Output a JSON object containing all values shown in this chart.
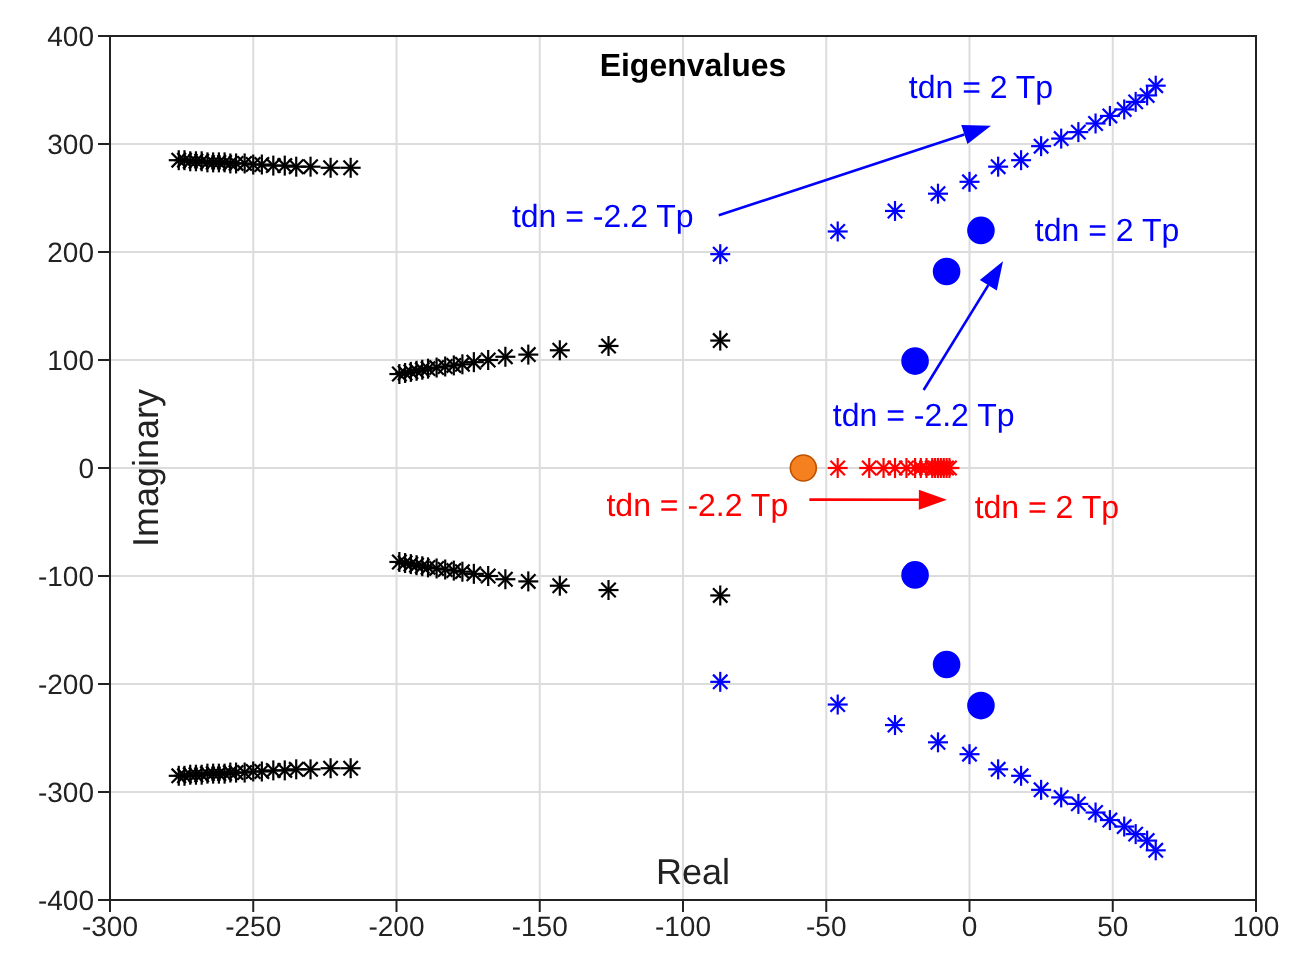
{
  "chart_data": {
    "type": "scatter",
    "title": "Eigenvalues",
    "xlabel": "Real",
    "ylabel": "Imaginary",
    "xlim": [
      -300,
      100
    ],
    "xticks": [
      -300,
      -250,
      -200,
      -150,
      -100,
      -50,
      0,
      50,
      100
    ],
    "ylim": [
      -400,
      400
    ],
    "yticks": [
      -400,
      -300,
      -200,
      -100,
      0,
      100,
      200,
      300,
      400
    ],
    "grid": true,
    "legend": false,
    "series": [
      {
        "color": "#000000",
        "marker": "cross",
        "x": [
          -276,
          -274,
          -272,
          -270,
          -268,
          -266,
          -264,
          -262,
          -260,
          -258,
          -256,
          -253,
          -250,
          -247,
          -243,
          -239,
          -235,
          -230,
          -223,
          -216,
          -276,
          -274,
          -272,
          -270,
          -268,
          -266,
          -264,
          -262,
          -260,
          -258,
          -256,
          -253,
          -250,
          -247,
          -243,
          -239,
          -235,
          -230,
          -223,
          -216,
          -199,
          -197,
          -195,
          -193,
          -191,
          -189,
          -186,
          -183,
          -180,
          -177,
          -173,
          -168,
          -162,
          -154,
          -143,
          -126,
          -87,
          -199,
          -197,
          -195,
          -193,
          -191,
          -189,
          -186,
          -183,
          -180,
          -177,
          -173,
          -168,
          -162,
          -154,
          -143,
          -126,
          -87
        ],
        "values": [
          285,
          285,
          284,
          284,
          284,
          283,
          283,
          283,
          283,
          282,
          282,
          282,
          281,
          281,
          280,
          280,
          279,
          279,
          278,
          278,
          -285,
          -285,
          -284,
          -284,
          -284,
          -283,
          -283,
          -283,
          -283,
          -282,
          -282,
          -282,
          -281,
          -281,
          -280,
          -280,
          -279,
          -279,
          -278,
          -278,
          87,
          88,
          89,
          90,
          91,
          92,
          93,
          94,
          95,
          96,
          98,
          100,
          103,
          105,
          109,
          113,
          118,
          -87,
          -88,
          -89,
          -90,
          -91,
          -92,
          -93,
          -94,
          -95,
          -96,
          -98,
          -100,
          -103,
          -105,
          -109,
          -113,
          -118
        ]
      },
      {
        "color": "#0000ff",
        "marker": "cross",
        "x": [
          -87,
          -46,
          -26,
          -11,
          0,
          10,
          18,
          25,
          32,
          38,
          44,
          49,
          54,
          58,
          62,
          65,
          -87,
          -46,
          -26,
          -11,
          0,
          10,
          18,
          25,
          32,
          38,
          44,
          49,
          54,
          58,
          62,
          65
        ],
        "values": [
          198,
          219,
          238,
          254,
          265,
          279,
          285,
          298,
          305,
          311,
          319,
          326,
          332,
          339,
          345,
          354,
          -198,
          -219,
          -238,
          -254,
          -265,
          -279,
          -285,
          -298,
          -305,
          -311,
          -319,
          -326,
          -332,
          -339,
          -345,
          -354
        ]
      },
      {
        "color": "#0000ff",
        "marker": "circle",
        "x": [
          -19,
          -8,
          4,
          -19,
          -8,
          4
        ],
        "values": [
          99,
          182,
          220,
          -99,
          -182,
          -220
        ]
      },
      {
        "color": "#ff0000",
        "marker": "cross",
        "x": [
          -46,
          -35,
          -30,
          -26,
          -22,
          -19,
          -17,
          -15,
          -13,
          -12,
          -11,
          -10,
          -9,
          -8,
          -7
        ],
        "values": [
          0,
          0,
          0,
          0,
          0,
          0,
          0,
          0,
          0,
          0,
          0,
          0,
          0,
          0,
          0
        ]
      },
      {
        "color": "#f4801f",
        "marker": "circle",
        "x": [
          -58
        ],
        "values": [
          0
        ]
      }
    ],
    "annotations": [
      "tdn = -2.2 Tp",
      "tdn = 2 Tp",
      "tdn = -2.2 Tp",
      "tdn = 2 Tp",
      "tdn = -2.2 Tp",
      "tdn = 2 Tp"
    ]
  }
}
